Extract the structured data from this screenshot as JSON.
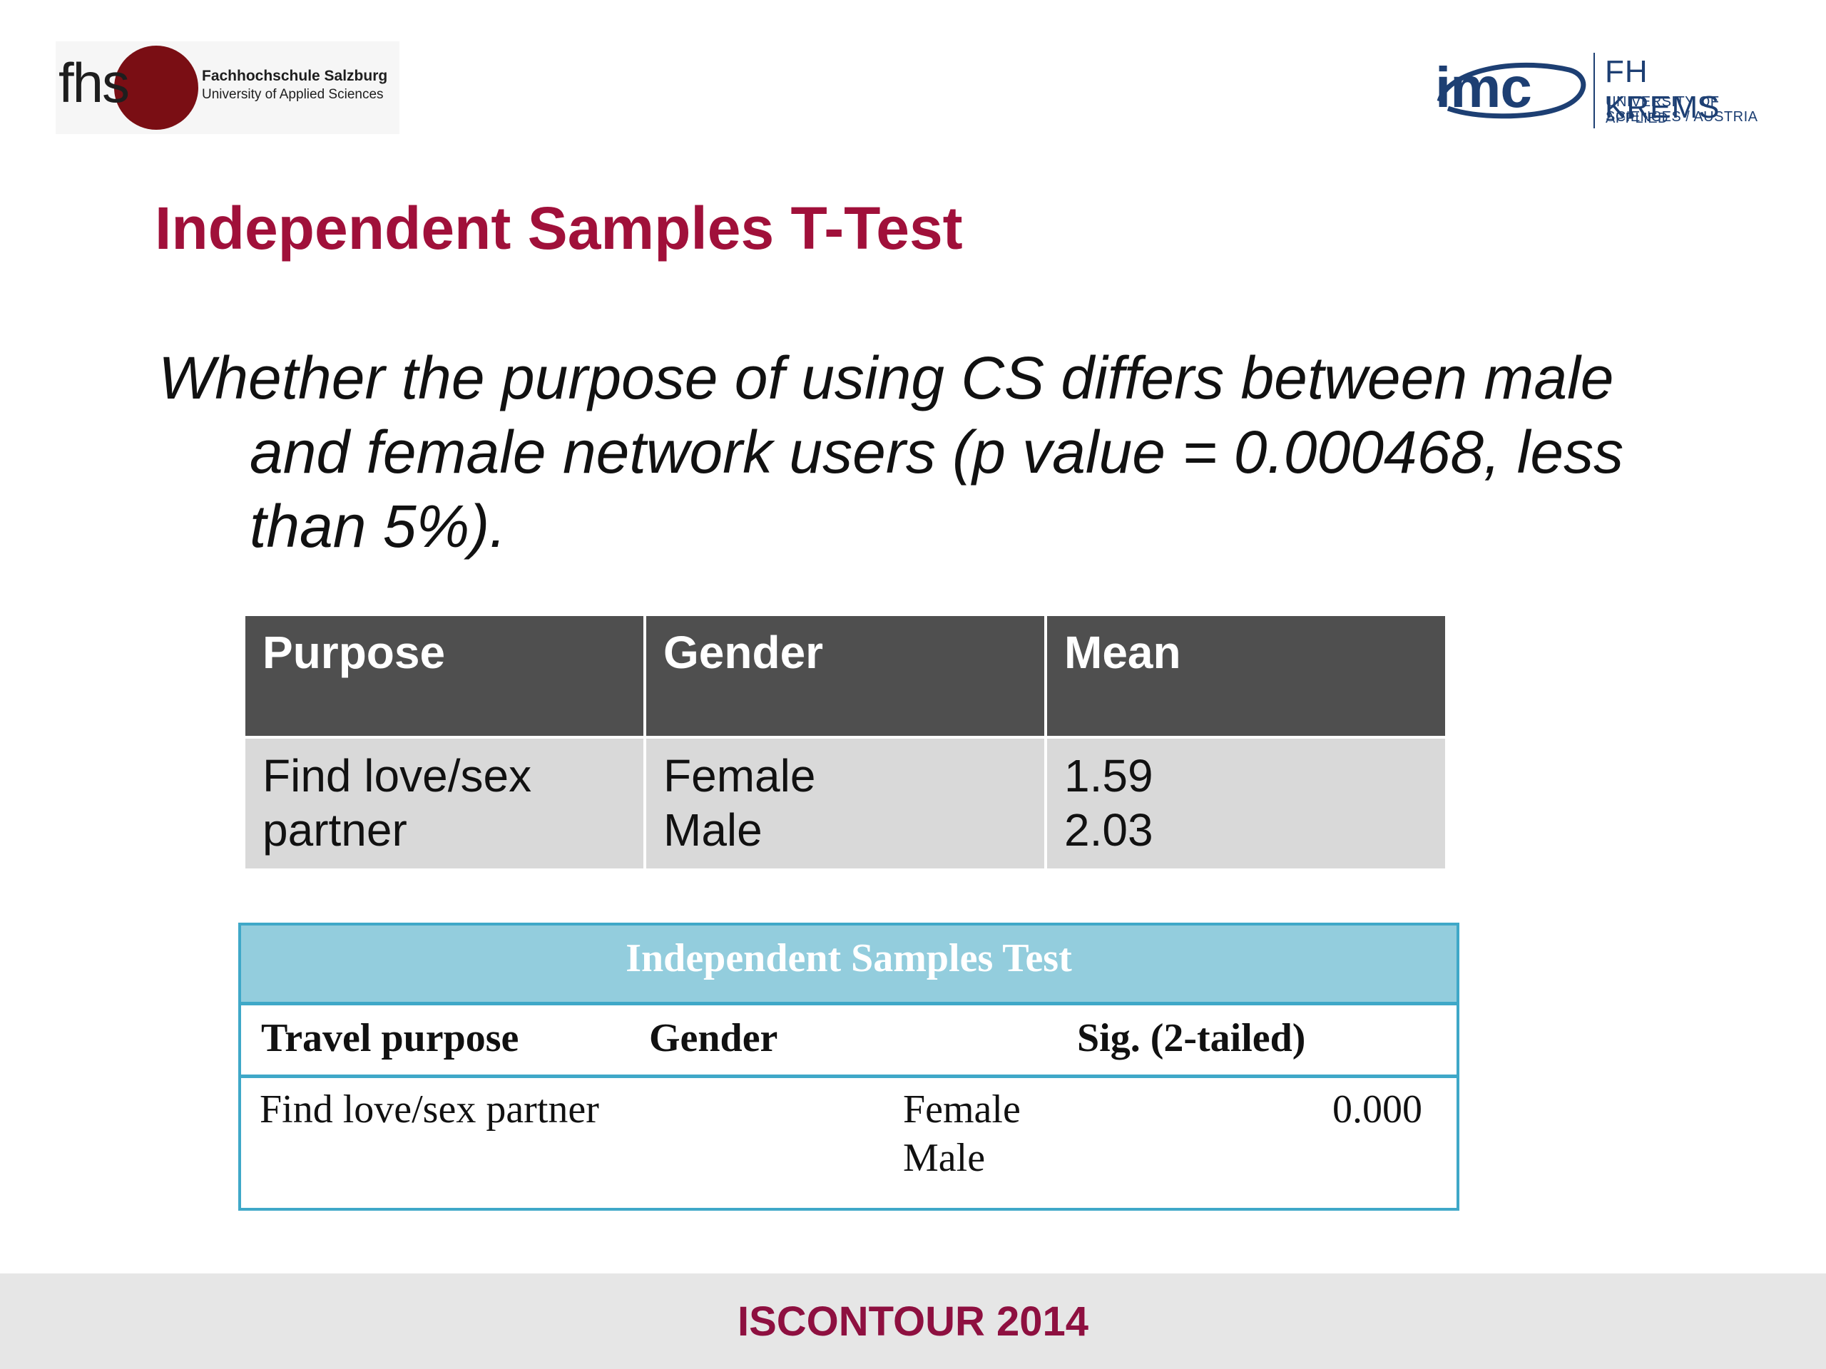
{
  "header": {
    "left_logo": {
      "letters": "fhs",
      "name": "Fachhochschule Salzburg",
      "subtitle": "University of Applied Sciences",
      "accent_color": "#7a0e14"
    },
    "right_logo": {
      "mark": "imc",
      "name": "FH KREMS",
      "subtitle_line1": "UNIVERSITY OF APPLIED",
      "subtitle_line2": "SCIENCES / AUSTRIA",
      "accent_color": "#1d3f73"
    }
  },
  "slide": {
    "title": "Independent Samples T-Test",
    "title_color": "#a0103a",
    "question_line1": "Whether the purpose of using CS differs between male",
    "question_line2": "and female network users (p value = 0.000468, less",
    "question_line3": "than 5%)."
  },
  "means_table": {
    "headers": [
      "Purpose",
      "Gender",
      "Mean"
    ],
    "row": {
      "purpose_line1": "Find love/sex",
      "purpose_line2": "partner",
      "gender_line1": "Female",
      "gender_line2": "Male",
      "mean_line1": "1.59",
      "mean_line2": "2.03"
    },
    "header_color": "#4f4f4f",
    "cell_color": "#d9d9d9"
  },
  "spss_table": {
    "title": "Independent Samples Test",
    "headers": [
      "Travel purpose",
      "Gender",
      "Sig. (2-tailed)"
    ],
    "row": {
      "purpose": "Find love/sex partner",
      "gender_line1": "Female",
      "gender_line2": "Male",
      "sig": "0.000"
    },
    "header_color": "#93cddd",
    "border_color": "#3fa8c8"
  },
  "footer": {
    "text": "ISCONTOUR 2014",
    "color": "#8e1040"
  }
}
